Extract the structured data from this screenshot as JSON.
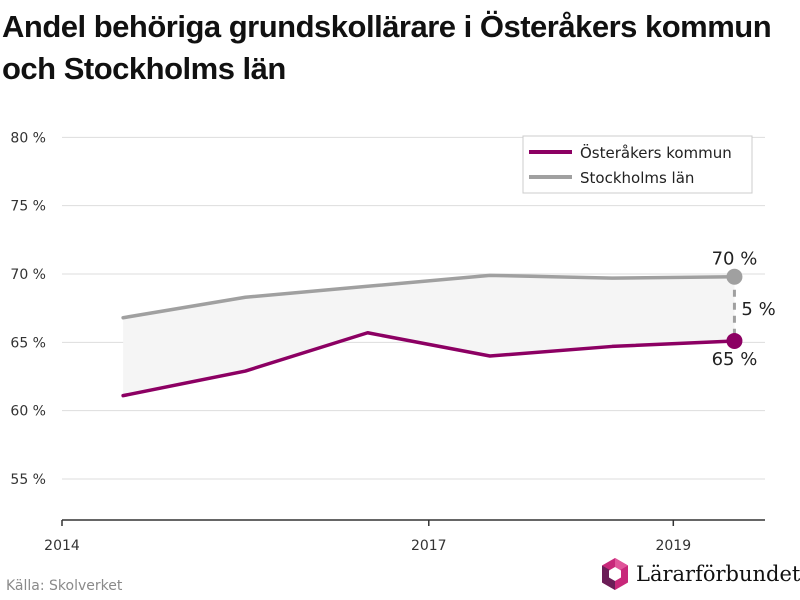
{
  "title": "Andel behöriga grundskollärare i Österåkers kommun och Stockholms län",
  "source": "Källa: Skolverket",
  "logo_text": "Lärarförbundet",
  "colors": {
    "osteraker": "#8c0063",
    "stockholm": "#a0a0a0",
    "band": "#f5f5f5",
    "grid": "#dddddd",
    "axis": "#333333",
    "logo_pink": "#c8287a",
    "logo_purple": "#6b1e57"
  },
  "chart_data": {
    "type": "line",
    "x": [
      2014.5,
      2015.5,
      2016.5,
      2017.5,
      2018.5,
      2019.5
    ],
    "series": [
      {
        "name": "Österåkers kommun",
        "values": [
          61.1,
          62.9,
          65.7,
          64.0,
          64.7,
          65.1
        ]
      },
      {
        "name": "Stockholms län",
        "values": [
          66.8,
          68.3,
          69.1,
          69.9,
          69.7,
          69.8
        ]
      }
    ],
    "xlim": [
      2014,
      2019.75
    ],
    "ylim": [
      52,
      82
    ],
    "xticks": [
      2014,
      2017,
      2019
    ],
    "xtick_labels": [
      "2014",
      "2017",
      "2019"
    ],
    "yticks": [
      55,
      60,
      65,
      70,
      75,
      80
    ],
    "ytick_labels": [
      "55 %",
      "60 %",
      "65 %",
      "70 %",
      "75 %",
      "80 %"
    ],
    "grid": true,
    "legend_position": "top-right",
    "annotations": {
      "end_top": "70 %",
      "end_bottom": "65 %",
      "gap": "5 %"
    }
  }
}
